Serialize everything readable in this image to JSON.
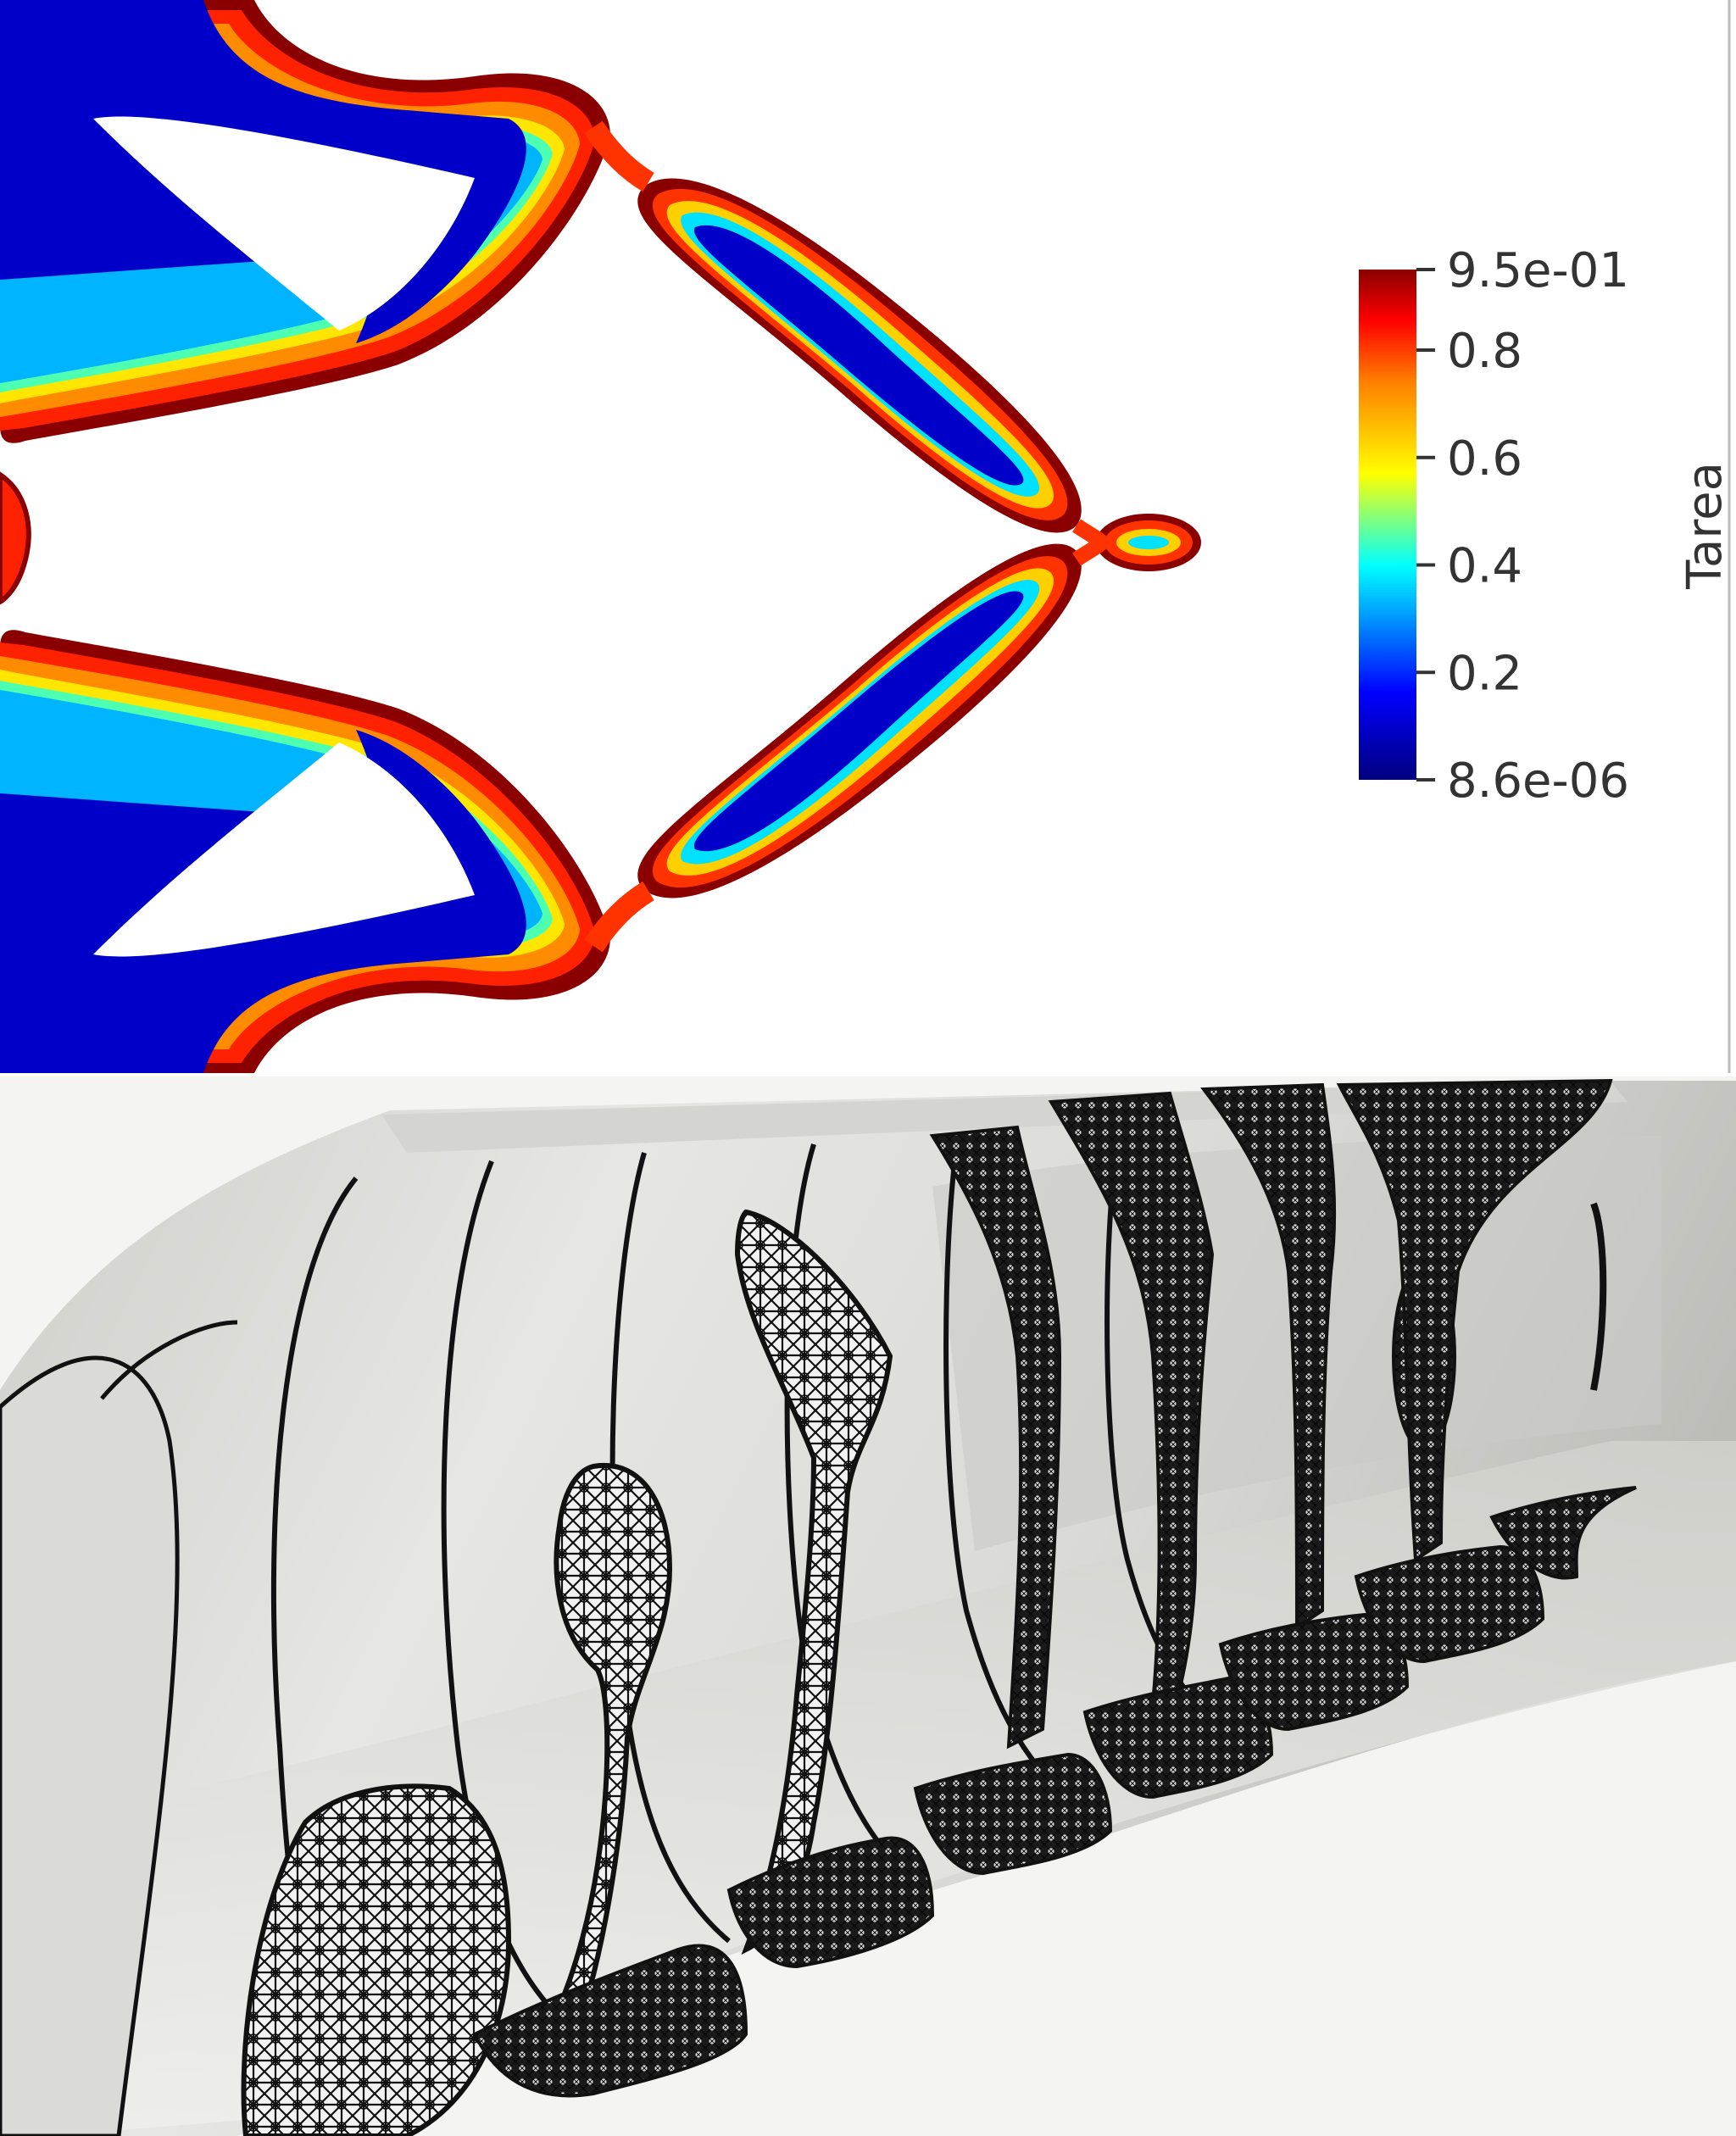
{
  "top_panel": {
    "colorbar": {
      "title": "Tarea",
      "colormap": "rainbow-desaturated",
      "colors": [
        "#00007f",
        "#0000ff",
        "#00ffff",
        "#ffff00",
        "#ff7f00",
        "#ff0000",
        "#7f0000"
      ],
      "ticks": [
        {
          "label": "9.5e-01",
          "value": 0.95
        },
        {
          "label": "0.8",
          "value": 0.8
        },
        {
          "label": "0.6",
          "value": 0.6
        },
        {
          "label": "0.4",
          "value": 0.4
        },
        {
          "label": "0.2",
          "value": 0.2
        },
        {
          "label": "8.6e-06",
          "value": 8.6e-06
        }
      ],
      "range": [
        8.6e-06,
        0.95
      ]
    }
  },
  "bottom_panel": {
    "mesh_color": "#111111",
    "surface_color": "#e4e4e0",
    "slice_count": 9
  }
}
